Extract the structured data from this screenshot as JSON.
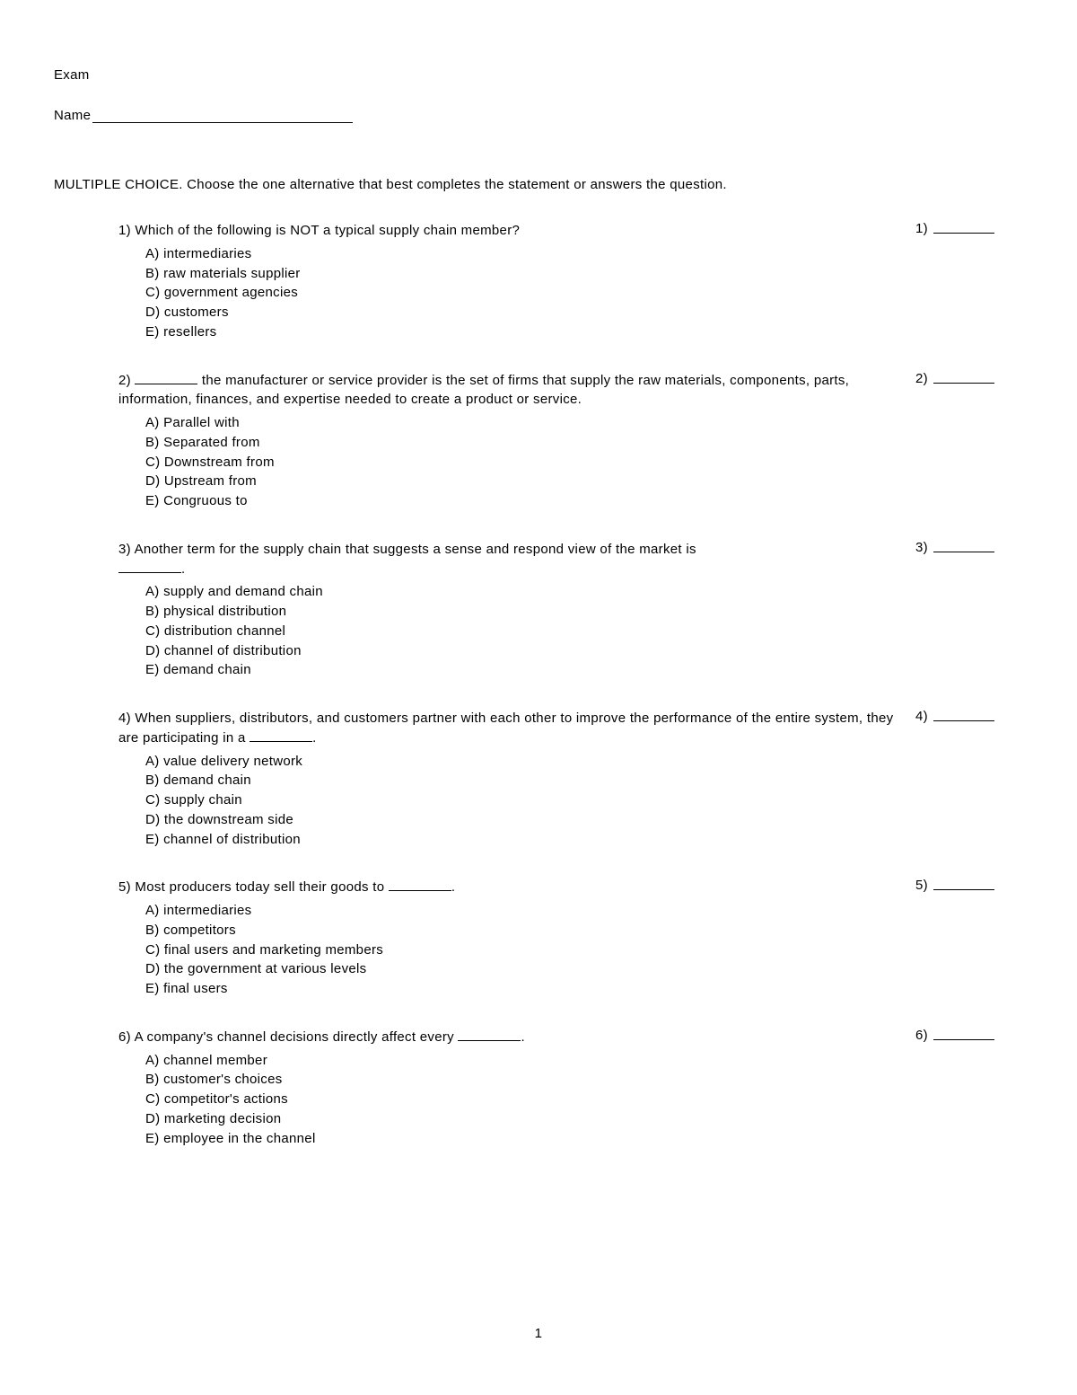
{
  "header": {
    "title": "Exam",
    "name_label": "Name"
  },
  "instructions": "MULTIPLE CHOICE.  Choose the one alternative that best completes the statement or answers the question.",
  "questions": [
    {
      "num": "1)",
      "stem": "Which of the following is NOT a typical supply chain member?",
      "options": [
        "A) intermediaries",
        "B) raw materials supplier",
        "C) government agencies",
        "D) customers",
        "E) resellers"
      ],
      "answer_num": "1)"
    },
    {
      "num": "2)",
      "stem_pre": "",
      "stem_post": " the manufacturer or service provider is the set of firms that supply the raw materials, components, parts, information, finances, and expertise needed to create a product or service.",
      "has_leading_blank": true,
      "options": [
        "A) Parallel with",
        "B) Separated from",
        "C) Downstream from",
        "D) Upstream from",
        "E) Congruous to"
      ],
      "answer_num": "2)"
    },
    {
      "num": "3)",
      "stem": "Another term for the supply chain that suggests a sense and respond view of the market is ",
      "has_trailing_blank_line": true,
      "trailing_punct": ".",
      "options": [
        "A) supply and demand chain",
        "B) physical distribution",
        "C) distribution channel",
        "D) channel of distribution",
        "E) demand chain"
      ],
      "answer_num": "3)"
    },
    {
      "num": "4)",
      "stem_pre": "When suppliers, distributors, and customers partner with each other to improve the performance of the entire system, they are participating in a ",
      "has_mid_blank": true,
      "stem_post": ".",
      "options": [
        "A) value delivery network",
        "B) demand chain",
        "C) supply chain",
        "D) the downstream side",
        "E) channel of distribution"
      ],
      "answer_num": "4)"
    },
    {
      "num": "5)",
      "stem_pre": "Most producers today sell their goods to ",
      "has_mid_blank": true,
      "stem_post": ".",
      "options": [
        "A) intermediaries",
        "B) competitors",
        "C) final users and marketing members",
        "D) the government at various levels",
        "E) final users"
      ],
      "answer_num": "5)"
    },
    {
      "num": "6)",
      "stem_pre": "A company's channel decisions directly affect every ",
      "has_mid_blank": true,
      "stem_post": ".",
      "options": [
        "A) channel member",
        "B) customer's choices",
        "C) competitor's actions",
        "D) marketing decision",
        "E) employee in the channel"
      ],
      "answer_num": "6)"
    }
  ],
  "page_number": "1"
}
